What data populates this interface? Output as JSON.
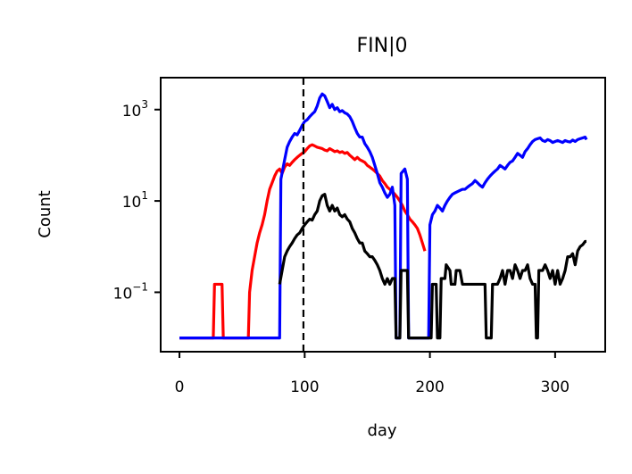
{
  "chart_data": {
    "type": "line",
    "title": "FIN|0",
    "xlabel": "day",
    "ylabel": "Count",
    "xlim": [
      -15,
      340
    ],
    "ylim": [
      0.005,
      5000
    ],
    "yscale": "log",
    "grid": false,
    "xticks": [
      0,
      100,
      200,
      300
    ],
    "xtick_labels": [
      "0",
      "100",
      "200",
      "300"
    ],
    "yticks": [
      0.1,
      10,
      1000
    ],
    "ytick_labels": [
      {
        "base": "10",
        "exp": "−1"
      },
      {
        "base": "10",
        "exp": "1"
      },
      {
        "base": "10",
        "exp": "3"
      }
    ],
    "vline": {
      "x": 99,
      "style": "dashed",
      "color": "#000000"
    },
    "floor_value": 0.01,
    "series": [
      {
        "color": "#ff0000",
        "points": [
          [
            0,
            0.01
          ],
          [
            27,
            0.01
          ],
          [
            28,
            0.15
          ],
          [
            34,
            0.15
          ],
          [
            35,
            0.01
          ],
          [
            55,
            0.01
          ],
          [
            56,
            0.1
          ],
          [
            58,
            0.3
          ],
          [
            60,
            0.6
          ],
          [
            62,
            1.2
          ],
          [
            64,
            2
          ],
          [
            66,
            3
          ],
          [
            68,
            5
          ],
          [
            70,
            10
          ],
          [
            72,
            18
          ],
          [
            74,
            25
          ],
          [
            76,
            35
          ],
          [
            78,
            45
          ],
          [
            80,
            50
          ],
          [
            82,
            40
          ],
          [
            84,
            55
          ],
          [
            86,
            65
          ],
          [
            88,
            60
          ],
          [
            90,
            70
          ],
          [
            92,
            80
          ],
          [
            94,
            90
          ],
          [
            96,
            100
          ],
          [
            98,
            110
          ],
          [
            100,
            120
          ],
          [
            102,
            140
          ],
          [
            104,
            160
          ],
          [
            106,
            170
          ],
          [
            108,
            160
          ],
          [
            110,
            150
          ],
          [
            112,
            145
          ],
          [
            114,
            140
          ],
          [
            116,
            130
          ],
          [
            118,
            125
          ],
          [
            120,
            140
          ],
          [
            122,
            130
          ],
          [
            124,
            120
          ],
          [
            126,
            125
          ],
          [
            128,
            115
          ],
          [
            130,
            120
          ],
          [
            132,
            110
          ],
          [
            134,
            115
          ],
          [
            136,
            100
          ],
          [
            138,
            90
          ],
          [
            140,
            80
          ],
          [
            142,
            90
          ],
          [
            144,
            80
          ],
          [
            146,
            75
          ],
          [
            148,
            70
          ],
          [
            150,
            60
          ],
          [
            152,
            55
          ],
          [
            154,
            50
          ],
          [
            156,
            45
          ],
          [
            158,
            40
          ],
          [
            160,
            35
          ],
          [
            162,
            28
          ],
          [
            164,
            24
          ],
          [
            166,
            20
          ],
          [
            168,
            18
          ],
          [
            170,
            16
          ],
          [
            172,
            14
          ],
          [
            174,
            12
          ],
          [
            176,
            10
          ],
          [
            178,
            8
          ],
          [
            180,
            6
          ],
          [
            182,
            5
          ],
          [
            184,
            4
          ],
          [
            186,
            3.5
          ],
          [
            188,
            3
          ],
          [
            190,
            2.5
          ],
          [
            192,
            1.8
          ],
          [
            194,
            1.2
          ],
          [
            196,
            0.8
          ]
        ]
      },
      {
        "color": "#0000ff",
        "points": [
          [
            0,
            0.01
          ],
          [
            80,
            0.01
          ],
          [
            81,
            30
          ],
          [
            84,
            80
          ],
          [
            86,
            150
          ],
          [
            88,
            200
          ],
          [
            90,
            250
          ],
          [
            92,
            300
          ],
          [
            94,
            280
          ],
          [
            96,
            350
          ],
          [
            98,
            450
          ],
          [
            100,
            550
          ],
          [
            102,
            600
          ],
          [
            104,
            700
          ],
          [
            106,
            800
          ],
          [
            108,
            900
          ],
          [
            110,
            1200
          ],
          [
            112,
            1800
          ],
          [
            114,
            2200
          ],
          [
            116,
            2000
          ],
          [
            118,
            1500
          ],
          [
            120,
            1100
          ],
          [
            122,
            1300
          ],
          [
            124,
            1000
          ],
          [
            126,
            1100
          ],
          [
            128,
            900
          ],
          [
            130,
            950
          ],
          [
            132,
            850
          ],
          [
            134,
            800
          ],
          [
            136,
            700
          ],
          [
            138,
            550
          ],
          [
            140,
            400
          ],
          [
            142,
            300
          ],
          [
            144,
            250
          ],
          [
            146,
            250
          ],
          [
            148,
            180
          ],
          [
            150,
            150
          ],
          [
            152,
            120
          ],
          [
            154,
            90
          ],
          [
            156,
            60
          ],
          [
            158,
            40
          ],
          [
            160,
            25
          ],
          [
            162,
            20
          ],
          [
            164,
            15
          ],
          [
            166,
            12
          ],
          [
            168,
            14
          ],
          [
            170,
            20
          ],
          [
            172,
            8
          ],
          [
            173,
            0.01
          ],
          [
            176,
            0.01
          ],
          [
            177,
            40
          ],
          [
            180,
            50
          ],
          [
            182,
            30
          ],
          [
            183,
            0.01
          ],
          [
            199,
            0.01
          ],
          [
            200,
            3
          ],
          [
            202,
            5
          ],
          [
            204,
            6
          ],
          [
            206,
            8
          ],
          [
            208,
            7
          ],
          [
            210,
            6
          ],
          [
            212,
            8
          ],
          [
            214,
            10
          ],
          [
            216,
            12
          ],
          [
            218,
            14
          ],
          [
            220,
            15
          ],
          [
            222,
            16
          ],
          [
            224,
            17
          ],
          [
            226,
            18
          ],
          [
            228,
            18
          ],
          [
            230,
            20
          ],
          [
            232,
            22
          ],
          [
            234,
            24
          ],
          [
            236,
            28
          ],
          [
            238,
            25
          ],
          [
            240,
            22
          ],
          [
            242,
            20
          ],
          [
            244,
            25
          ],
          [
            246,
            30
          ],
          [
            248,
            35
          ],
          [
            250,
            40
          ],
          [
            252,
            45
          ],
          [
            254,
            50
          ],
          [
            256,
            60
          ],
          [
            258,
            55
          ],
          [
            260,
            50
          ],
          [
            262,
            60
          ],
          [
            264,
            70
          ],
          [
            266,
            75
          ],
          [
            268,
            90
          ],
          [
            270,
            110
          ],
          [
            272,
            100
          ],
          [
            274,
            90
          ],
          [
            276,
            120
          ],
          [
            278,
            140
          ],
          [
            280,
            170
          ],
          [
            282,
            200
          ],
          [
            284,
            220
          ],
          [
            286,
            230
          ],
          [
            288,
            240
          ],
          [
            290,
            210
          ],
          [
            292,
            200
          ],
          [
            294,
            220
          ],
          [
            296,
            210
          ],
          [
            298,
            190
          ],
          [
            300,
            200
          ],
          [
            302,
            210
          ],
          [
            304,
            200
          ],
          [
            306,
            190
          ],
          [
            308,
            210
          ],
          [
            310,
            200
          ],
          [
            312,
            195
          ],
          [
            314,
            215
          ],
          [
            316,
            200
          ],
          [
            318,
            220
          ],
          [
            320,
            230
          ],
          [
            322,
            240
          ],
          [
            324,
            250
          ],
          [
            325,
            220
          ]
        ]
      },
      {
        "color": "#000000",
        "points": [
          [
            80,
            0.15
          ],
          [
            82,
            0.3
          ],
          [
            84,
            0.6
          ],
          [
            86,
            0.8
          ],
          [
            88,
            1.0
          ],
          [
            90,
            1.2
          ],
          [
            92,
            1.5
          ],
          [
            94,
            1.8
          ],
          [
            96,
            2
          ],
          [
            98,
            2.5
          ],
          [
            100,
            3
          ],
          [
            102,
            3.5
          ],
          [
            104,
            4
          ],
          [
            106,
            3.8
          ],
          [
            108,
            5
          ],
          [
            110,
            6
          ],
          [
            112,
            10
          ],
          [
            114,
            13
          ],
          [
            116,
            14
          ],
          [
            118,
            8
          ],
          [
            120,
            6
          ],
          [
            122,
            8
          ],
          [
            124,
            6
          ],
          [
            126,
            7
          ],
          [
            128,
            5
          ],
          [
            130,
            4.5
          ],
          [
            132,
            5
          ],
          [
            134,
            4
          ],
          [
            136,
            3.5
          ],
          [
            138,
            2.5
          ],
          [
            140,
            2
          ],
          [
            142,
            1.5
          ],
          [
            144,
            1.2
          ],
          [
            146,
            1.2
          ],
          [
            148,
            0.8
          ],
          [
            150,
            0.7
          ],
          [
            152,
            0.6
          ],
          [
            154,
            0.6
          ],
          [
            156,
            0.5
          ],
          [
            158,
            0.4
          ],
          [
            160,
            0.3
          ],
          [
            162,
            0.2
          ],
          [
            164,
            0.15
          ],
          [
            166,
            0.2
          ],
          [
            168,
            0.15
          ],
          [
            170,
            0.2
          ],
          [
            172,
            0.2
          ],
          [
            173,
            0.01
          ],
          [
            176,
            0.01
          ],
          [
            177,
            0.3
          ],
          [
            180,
            0.3
          ],
          [
            182,
            0.3
          ],
          [
            183,
            0.01
          ],
          [
            199,
            0.01
          ],
          [
            201,
            0.01
          ],
          [
            202,
            0.15
          ],
          [
            205,
            0.15
          ],
          [
            206,
            0.01
          ],
          [
            208,
            0.01
          ],
          [
            209,
            0.2
          ],
          [
            212,
            0.2
          ],
          [
            213,
            0.4
          ],
          [
            216,
            0.3
          ],
          [
            217,
            0.15
          ],
          [
            220,
            0.15
          ],
          [
            221,
            0.3
          ],
          [
            224,
            0.3
          ],
          [
            226,
            0.15
          ],
          [
            228,
            0.15
          ],
          [
            230,
            0.15
          ],
          [
            232,
            0.15
          ],
          [
            234,
            0.15
          ],
          [
            236,
            0.15
          ],
          [
            238,
            0.15
          ],
          [
            240,
            0.15
          ],
          [
            242,
            0.15
          ],
          [
            244,
            0.15
          ],
          [
            245,
            0.01
          ],
          [
            249,
            0.01
          ],
          [
            250,
            0.15
          ],
          [
            252,
            0.15
          ],
          [
            254,
            0.15
          ],
          [
            256,
            0.2
          ],
          [
            258,
            0.3
          ],
          [
            260,
            0.15
          ],
          [
            262,
            0.3
          ],
          [
            264,
            0.3
          ],
          [
            266,
            0.2
          ],
          [
            268,
            0.4
          ],
          [
            270,
            0.3
          ],
          [
            272,
            0.2
          ],
          [
            274,
            0.3
          ],
          [
            276,
            0.3
          ],
          [
            278,
            0.4
          ],
          [
            280,
            0.2
          ],
          [
            282,
            0.15
          ],
          [
            284,
            0.15
          ],
          [
            285,
            0.01
          ],
          [
            286,
            0.01
          ],
          [
            287,
            0.3
          ],
          [
            290,
            0.3
          ],
          [
            292,
            0.4
          ],
          [
            294,
            0.3
          ],
          [
            296,
            0.2
          ],
          [
            298,
            0.3
          ],
          [
            300,
            0.15
          ],
          [
            302,
            0.3
          ],
          [
            304,
            0.15
          ],
          [
            306,
            0.2
          ],
          [
            308,
            0.3
          ],
          [
            310,
            0.6
          ],
          [
            312,
            0.6
          ],
          [
            314,
            0.7
          ],
          [
            316,
            0.4
          ],
          [
            318,
            0.8
          ],
          [
            320,
            1.0
          ],
          [
            322,
            1.1
          ],
          [
            324,
            1.3
          ],
          [
            325,
            1.3
          ]
        ]
      }
    ]
  }
}
